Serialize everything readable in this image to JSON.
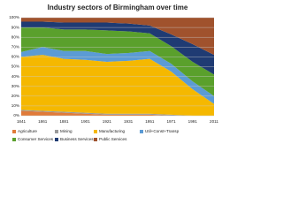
{
  "chart_data": {
    "type": "stacked-area",
    "title": "Industry sectors of Birmingham over time",
    "categories": [
      "1841",
      "1861",
      "1881",
      "1901",
      "1921",
      "1931",
      "1951",
      "1971",
      "1991",
      "2011"
    ],
    "series": [
      {
        "name": "Agriculture",
        "color": "#e07b39",
        "values": [
          5,
          4,
          3,
          2,
          1,
          1,
          1,
          0,
          0,
          0
        ]
      },
      {
        "name": "Mining",
        "color": "#9a9a9a",
        "values": [
          1,
          1,
          1,
          1,
          1,
          1,
          1,
          1,
          0,
          0
        ]
      },
      {
        "name": "Manufacturing",
        "color": "#f5b800",
        "values": [
          54,
          57,
          54,
          54,
          53,
          54,
          56,
          44,
          27,
          12
        ]
      },
      {
        "name": "Util+Const+Transp",
        "color": "#5b9bd5",
        "values": [
          5,
          8,
          8,
          9,
          8,
          8,
          8,
          8,
          8,
          8
        ]
      },
      {
        "name": "Consumer Services",
        "color": "#5aa02c",
        "values": [
          25,
          20,
          22,
          22,
          24,
          22,
          18,
          18,
          20,
          22
        ]
      },
      {
        "name": "Business Services",
        "color": "#1f3b73",
        "values": [
          6,
          6,
          7,
          7,
          8,
          8,
          8,
          12,
          18,
          20
        ]
      },
      {
        "name": "Public Services",
        "color": "#a0522d",
        "values": [
          4,
          4,
          5,
          5,
          5,
          6,
          8,
          17,
          27,
          38
        ]
      }
    ],
    "ylim": [
      0,
      100
    ],
    "yticks": [
      {
        "value": 0,
        "label": "0%"
      },
      {
        "value": 10,
        "label": "10%"
      },
      {
        "value": 20,
        "label": "20%"
      },
      {
        "value": 30,
        "label": "30%"
      },
      {
        "value": 40,
        "label": "40%"
      },
      {
        "value": 50,
        "label": "50%"
      },
      {
        "value": 60,
        "label": "60%"
      },
      {
        "value": 70,
        "label": "70%"
      },
      {
        "value": 80,
        "label": "80%"
      },
      {
        "value": 90,
        "label": "90%"
      },
      {
        "value": 100,
        "label": "100%"
      }
    ],
    "grid": true
  }
}
